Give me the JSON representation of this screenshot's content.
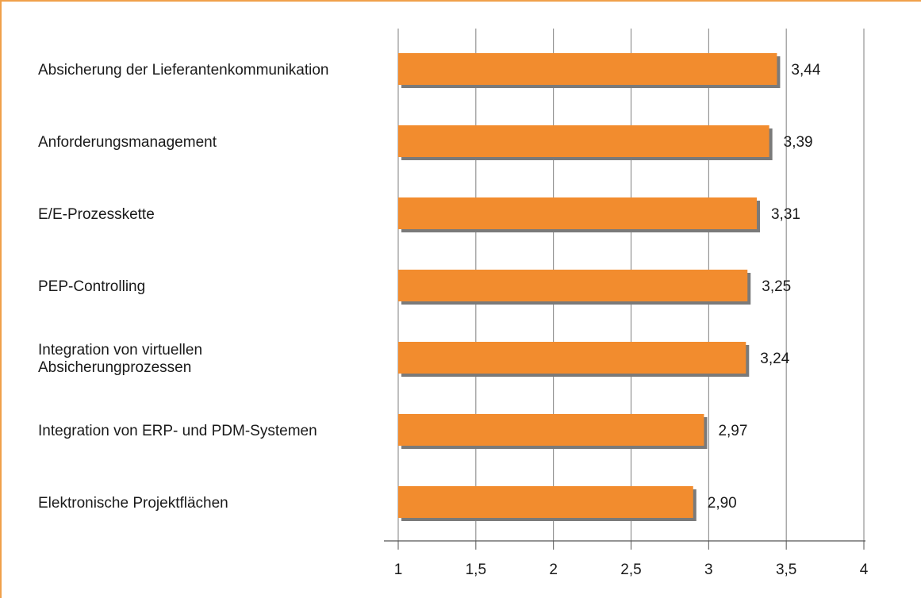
{
  "chart_data": {
    "type": "bar",
    "orientation": "horizontal",
    "categories": [
      "Absicherung der Lieferantenkommunikation",
      "Anforderungsmanagement",
      "E/E-Prozesskette",
      "PEP-Controlling",
      "Integration von virtuellen Absicherungprozessen",
      "Integration von ERP- und PDM-Systemen",
      "Elektronische Projektflächen"
    ],
    "category_lines": [
      [
        "Absicherung der Lieferantenkommunikation"
      ],
      [
        "Anforderungsmanagement"
      ],
      [
        "E/E-Prozesskette"
      ],
      [
        "PEP-Controlling"
      ],
      [
        "Integration von virtuellen",
        "Absicherungprozessen"
      ],
      [
        "Integration von ERP- und PDM-Systemen"
      ],
      [
        "Elektronische Projektflächen"
      ]
    ],
    "values": [
      3.44,
      3.39,
      3.31,
      3.25,
      3.24,
      2.97,
      2.9
    ],
    "value_labels": [
      "3,44",
      "3,39",
      "3,31",
      "3,25",
      "3,24",
      "2,97",
      "2,90"
    ],
    "xlim": [
      1,
      4
    ],
    "ticks": [
      1,
      1.5,
      2,
      2.5,
      3,
      3.5,
      4
    ],
    "tick_labels": [
      "1",
      "1,5",
      "2",
      "2,5",
      "3",
      "3,5",
      "4"
    ],
    "grid": true,
    "bar_color": "#f28c2e",
    "bar_shadow_color": "#7a7a7a",
    "frame_color": "#f0a04a",
    "grid_color": "#7f7f7f",
    "title": "",
    "xlabel": "",
    "ylabel": ""
  }
}
